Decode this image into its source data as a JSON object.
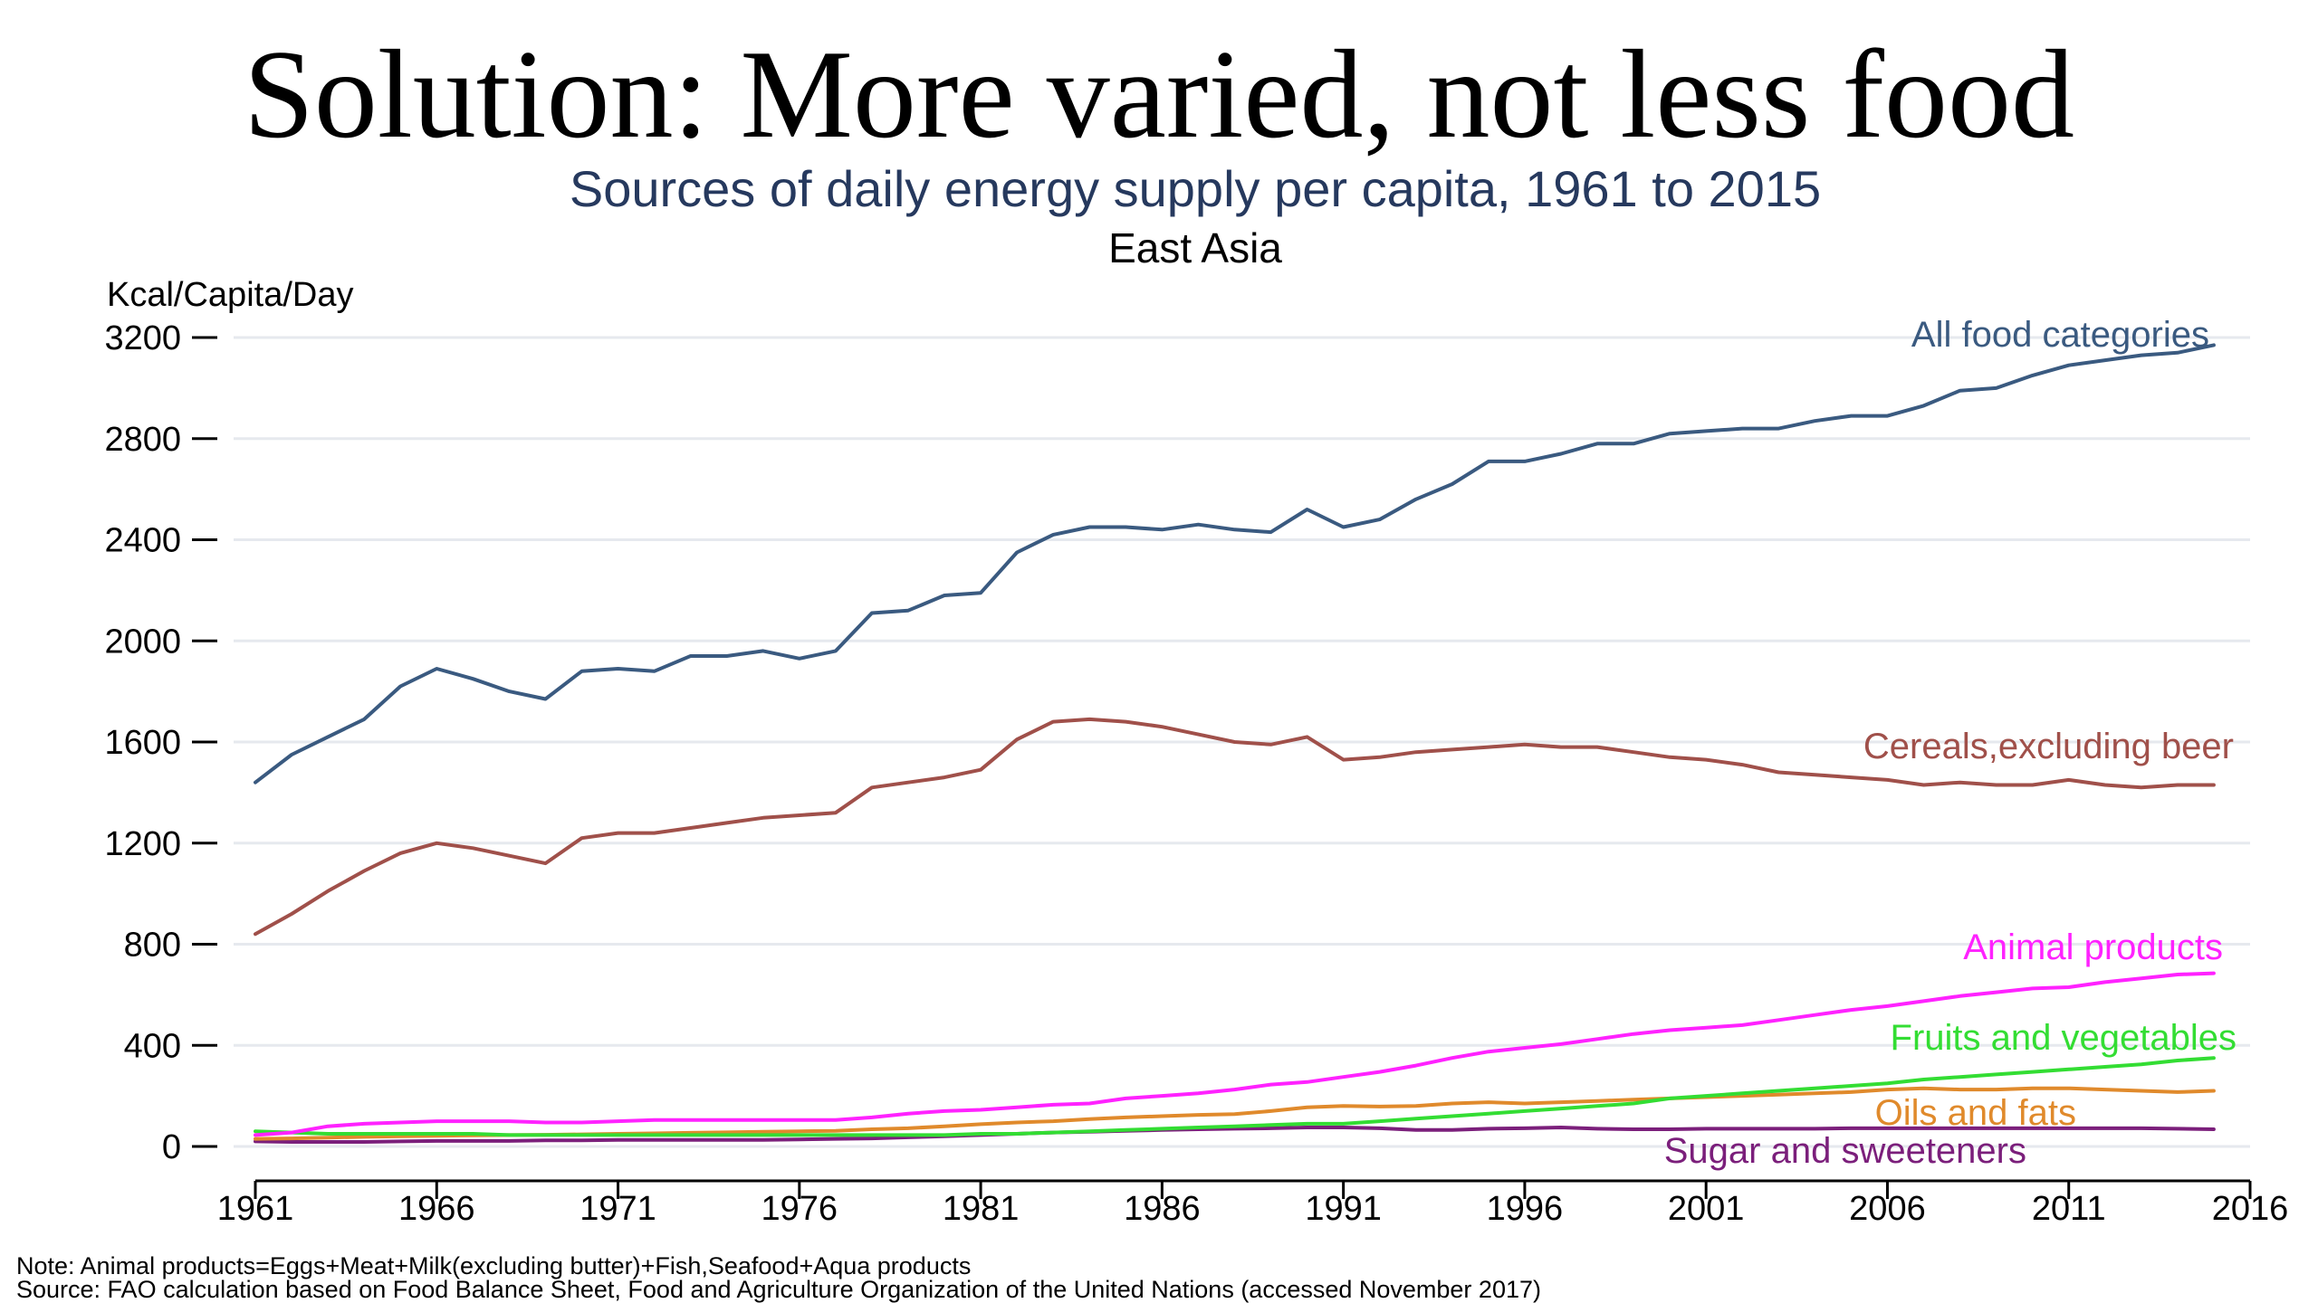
{
  "slide_title": "Solution: More varied, not less food",
  "notes": {
    "note": "Note: Animal products=Eggs+Meat+Milk(excluding butter)+Fish,Seafood+Aqua products",
    "source": "Source: FAO calculation based on Food Balance Sheet, Food and Agriculture Organization of the United Nations (accessed November 2017)"
  },
  "chart_data": {
    "type": "line",
    "title": "Sources of daily energy supply per capita, 1961 to 2015",
    "subtitle": "East Asia",
    "ylabel": "Kcal/Capita/Day",
    "xlabel": "",
    "xlim": [
      1961,
      2016
    ],
    "ylim": [
      0,
      3200
    ],
    "x_ticks": [
      1961,
      1966,
      1971,
      1976,
      1981,
      1986,
      1991,
      1996,
      2001,
      2006,
      2011,
      2016
    ],
    "y_ticks": [
      0,
      400,
      800,
      1200,
      1600,
      2000,
      2400,
      2800,
      3200
    ],
    "grid": true,
    "legend": "labels at line ends",
    "x": [
      1961,
      1962,
      1963,
      1964,
      1965,
      1966,
      1967,
      1968,
      1969,
      1970,
      1971,
      1972,
      1973,
      1974,
      1975,
      1976,
      1977,
      1978,
      1979,
      1980,
      1981,
      1982,
      1983,
      1984,
      1985,
      1986,
      1987,
      1988,
      1989,
      1990,
      1991,
      1992,
      1993,
      1994,
      1995,
      1996,
      1997,
      1998,
      1999,
      2000,
      2001,
      2002,
      2003,
      2004,
      2005,
      2006,
      2007,
      2008,
      2009,
      2010,
      2011,
      2012,
      2013,
      2014,
      2015
    ],
    "series": [
      {
        "name": "All food categories",
        "color": "#3a5a80",
        "values": [
          1440,
          1550,
          1620,
          1690,
          1820,
          1890,
          1850,
          1800,
          1770,
          1880,
          1890,
          1880,
          1940,
          1940,
          1960,
          1930,
          1960,
          2110,
          2120,
          2180,
          2190,
          2350,
          2420,
          2450,
          2450,
          2440,
          2460,
          2440,
          2430,
          2520,
          2450,
          2480,
          2560,
          2620,
          2710,
          2710,
          2740,
          2780,
          2780,
          2820,
          2830,
          2840,
          2840,
          2870,
          2890,
          2890,
          2930,
          2990,
          3000,
          3050,
          3090,
          3110,
          3130,
          3140,
          3170
        ]
      },
      {
        "name": "Cereals,excluding beer",
        "color": "#a0504a",
        "values": [
          840,
          920,
          1010,
          1090,
          1160,
          1200,
          1180,
          1150,
          1120,
          1220,
          1240,
          1240,
          1260,
          1280,
          1300,
          1310,
          1320,
          1420,
          1440,
          1460,
          1490,
          1610,
          1680,
          1690,
          1680,
          1660,
          1630,
          1600,
          1590,
          1620,
          1530,
          1540,
          1560,
          1570,
          1580,
          1590,
          1580,
          1580,
          1560,
          1540,
          1530,
          1510,
          1480,
          1470,
          1460,
          1450,
          1430,
          1440,
          1430,
          1430,
          1450,
          1430,
          1420,
          1430,
          1430
        ]
      },
      {
        "name": "Animal products",
        "color": "#ff22ff",
        "values": [
          45,
          55,
          80,
          90,
          95,
          100,
          100,
          100,
          95,
          95,
          100,
          105,
          105,
          105,
          105,
          105,
          105,
          115,
          130,
          140,
          145,
          155,
          165,
          170,
          190,
          200,
          210,
          225,
          245,
          255,
          275,
          295,
          320,
          350,
          375,
          390,
          405,
          425,
          445,
          460,
          470,
          480,
          500,
          520,
          540,
          555,
          575,
          595,
          610,
          625,
          630,
          650,
          665,
          680,
          685
        ]
      },
      {
        "name": "Fruits and vegetables",
        "color": "#33dd33",
        "values": [
          60,
          55,
          50,
          50,
          50,
          50,
          50,
          45,
          45,
          45,
          45,
          45,
          45,
          45,
          45,
          45,
          45,
          45,
          45,
          45,
          50,
          50,
          55,
          60,
          65,
          70,
          75,
          80,
          85,
          90,
          90,
          100,
          110,
          120,
          130,
          140,
          150,
          160,
          170,
          190,
          200,
          210,
          220,
          230,
          240,
          250,
          265,
          275,
          285,
          295,
          305,
          315,
          325,
          340,
          350
        ]
      },
      {
        "name": "Oils and fats",
        "color": "#e08a2c",
        "values": [
          30,
          32,
          35,
          38,
          40,
          42,
          44,
          45,
          46,
          48,
          50,
          52,
          54,
          56,
          58,
          60,
          62,
          68,
          72,
          80,
          88,
          95,
          100,
          108,
          115,
          120,
          125,
          128,
          140,
          155,
          160,
          158,
          160,
          170,
          175,
          170,
          175,
          180,
          185,
          190,
          195,
          200,
          205,
          210,
          215,
          225,
          230,
          225,
          225,
          230,
          230,
          225,
          220,
          215,
          220
        ]
      },
      {
        "name": "Sugar and sweeteners",
        "color": "#7b1f7b",
        "values": [
          20,
          18,
          18,
          18,
          20,
          22,
          22,
          22,
          24,
          24,
          26,
          26,
          26,
          26,
          26,
          28,
          30,
          32,
          36,
          40,
          45,
          50,
          55,
          58,
          62,
          65,
          68,
          70,
          72,
          75,
          75,
          72,
          65,
          65,
          70,
          72,
          75,
          70,
          68,
          68,
          70,
          70,
          70,
          70,
          72,
          72,
          72,
          72,
          72,
          72,
          72,
          72,
          72,
          70,
          68
        ]
      }
    ],
    "notes_text": [
      "Note: Animal products=Eggs+Meat+Milk(excluding butter)+Fish,Seafood+Aqua products",
      "Source: FAO calculation based on Food Balance Sheet, Food and Agriculture Organization of the United Nations (accessed November 2017)"
    ]
  }
}
